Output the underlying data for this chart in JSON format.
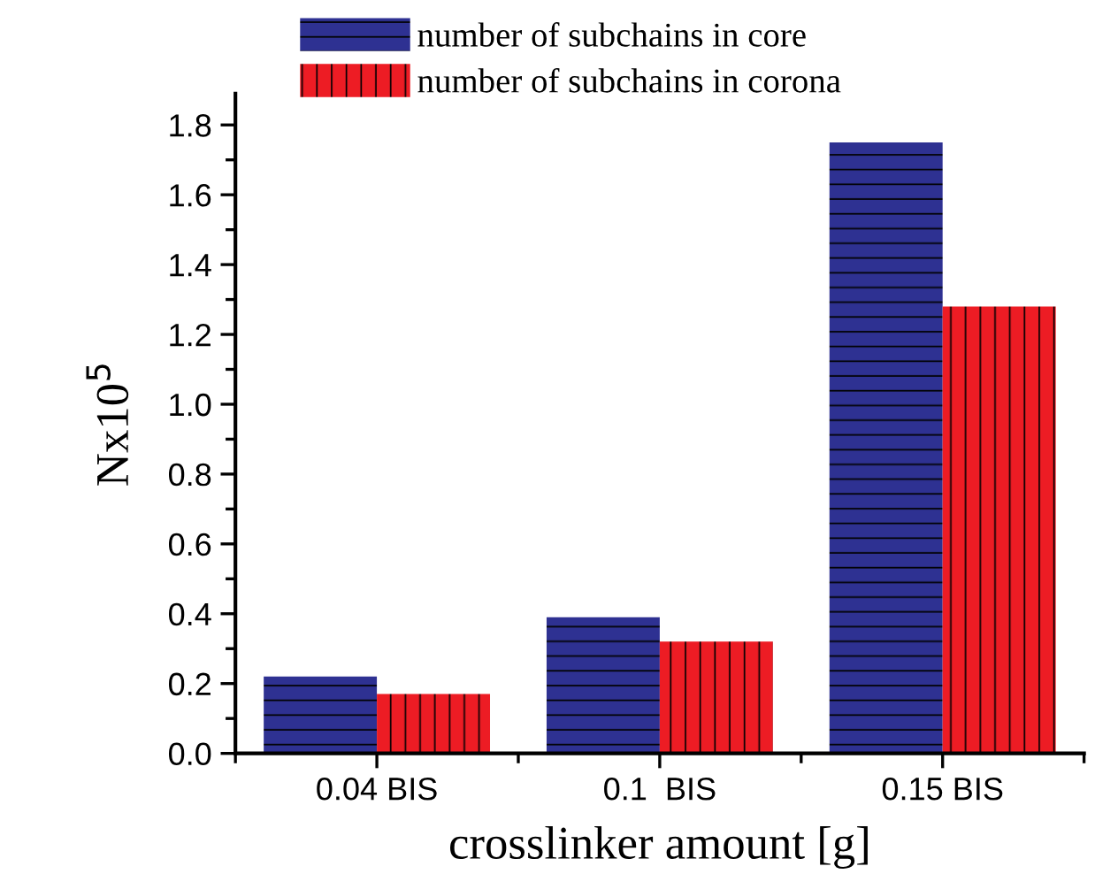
{
  "chart_data": {
    "type": "bar",
    "xlabel": "crosslinker amount [g]",
    "ylabel": "Nx10$^{5}$",
    "categories": [
      "0.04 BIS",
      "0.1  BIS",
      "0.15 BIS"
    ],
    "series": [
      {
        "name": "number of subchains in core",
        "color": "#2e3192",
        "values": [
          0.22,
          0.39,
          1.75
        ]
      },
      {
        "name": "number of subchains in corona",
        "color": "#ed1c24",
        "values": [
          0.17,
          0.32,
          1.28
        ]
      }
    ],
    "ylim": [
      0,
      1.89
    ],
    "yticks": [
      {
        "value": 0,
        "label": "0.0"
      },
      0.2,
      0.4,
      0.6,
      0.8,
      {
        "value": 1,
        "label": "1.0"
      },
      1.2,
      1.4,
      1.6,
      1.8
    ],
    "grid": false,
    "legend": "top left"
  }
}
